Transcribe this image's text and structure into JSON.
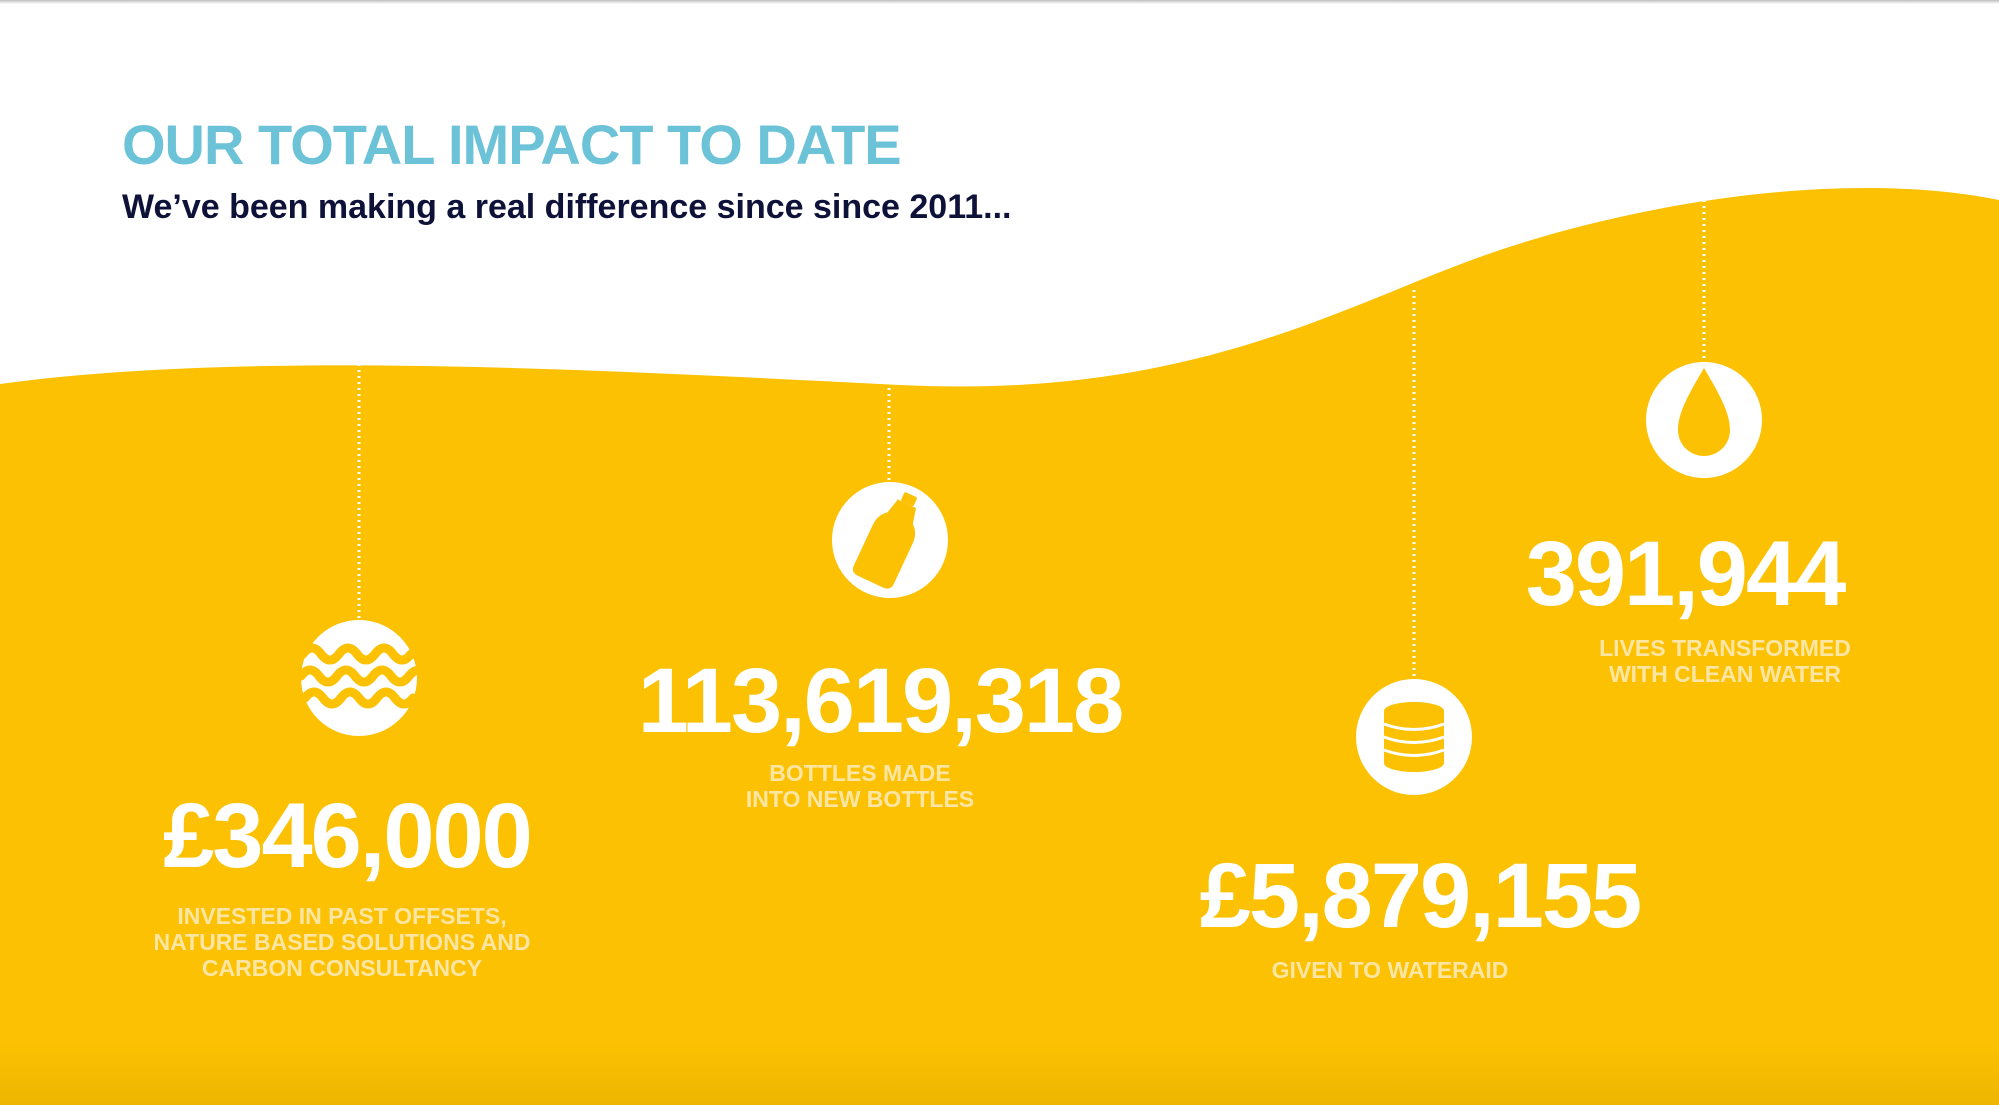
{
  "colors": {
    "yellow": "#FBC102",
    "title": "#6CC3D8",
    "subtitle": "#0F1238",
    "label": "#FDE6A4",
    "white": "#FFFFFF"
  },
  "header": {
    "title": "OUR TOTAL IMPACT TO DATE",
    "subtitle": "We’ve been making a real difference since since 2011..."
  },
  "stats": {
    "offsets": {
      "value": "£346,000",
      "label": "INVESTED IN PAST OFFSETS,\nNATURE BASED SOLUTIONS AND\nCARBON CONSULTANCY",
      "icon": "water-waves-icon"
    },
    "bottles": {
      "value": "113,619,318",
      "label": "BOTTLES MADE\nINTO NEW BOTTLES",
      "icon": "bottle-icon"
    },
    "wateraid": {
      "value": "£5,879,155",
      "label": "GIVEN TO WATERAID",
      "icon": "coin-stack-icon"
    },
    "lives": {
      "value": "391,944",
      "label": "LIVES TRANSFORMED\nWITH CLEAN WATER",
      "icon": "water-drop-icon"
    }
  }
}
